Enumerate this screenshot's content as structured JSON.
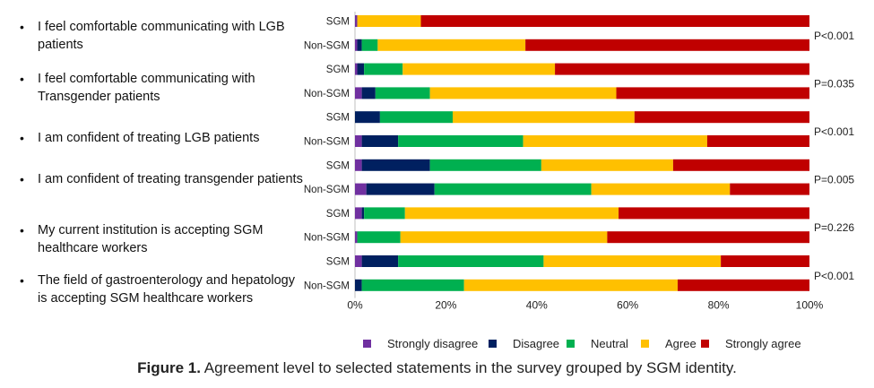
{
  "statements": [
    "I feel comfortable communicating with LGB patients",
    "I feel comfortable communicating with Transgender patients",
    "I am confident of treating LGB patients",
    "I am confident of treating transgender patients",
    "My current institution is accepting SGM healthcare workers",
    "The field of gastroenterology and hepatology is accepting SGM healthcare workers"
  ],
  "chart_data": {
    "type": "bar",
    "orientation": "horizontal",
    "stacked": "100%",
    "categories": [
      "SGM",
      "Non-SGM",
      "SGM",
      "Non-SGM",
      "SGM",
      "Non-SGM",
      "SGM",
      "Non-SGM",
      "SGM",
      "Non-SGM",
      "SGM",
      "Non-SGM"
    ],
    "series": [
      {
        "name": "Strongly disagree",
        "color": "#7030a0",
        "values": [
          0.5,
          0.5,
          0.5,
          1.5,
          0,
          1.5,
          1.5,
          2.5,
          1.5,
          0.5,
          1.5,
          0
        ]
      },
      {
        "name": "Disagree",
        "color": "#002060",
        "values": [
          0,
          1,
          1.5,
          3,
          5.5,
          8,
          15,
          15,
          0.5,
          0,
          8,
          1.5
        ]
      },
      {
        "name": "Neutral",
        "color": "#00b050",
        "values": [
          0,
          3.5,
          8.5,
          12,
          16,
          27.5,
          24.5,
          34.5,
          9,
          9.5,
          32,
          22.5
        ]
      },
      {
        "name": "Agree",
        "color": "#ffc000",
        "values": [
          14,
          32.5,
          33.5,
          41,
          40,
          40.5,
          29,
          30.5,
          47,
          45.5,
          39,
          47
        ]
      },
      {
        "name": "Strongly agree",
        "color": "#c00000",
        "values": [
          85.5,
          62.5,
          56,
          42.5,
          38.5,
          22.5,
          30,
          17.5,
          42,
          44.5,
          19.5,
          29
        ]
      }
    ],
    "p_values": [
      "P<0.001",
      "P=0.035",
      "P<0.001",
      "P=0.005",
      "P=0.226",
      "P<0.001"
    ],
    "xticks": [
      "0%",
      "20%",
      "40%",
      "60%",
      "80%",
      "100%"
    ],
    "xlim": [
      0,
      100
    ],
    "legend_position": "bottom",
    "title": ""
  },
  "caption": {
    "label": "Figure 1.",
    "text": " Agreement level to selected statements in the survey grouped by SGM identity."
  }
}
